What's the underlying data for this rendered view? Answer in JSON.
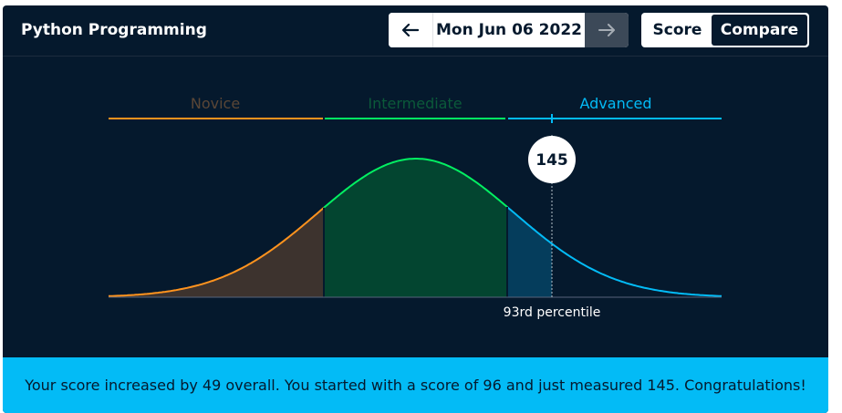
{
  "header": {
    "title": "Python Programming",
    "date": "Mon Jun 06 2022",
    "prev_icon": "arrow-left-icon",
    "next_icon": "arrow-right-icon",
    "toggle": {
      "score_label": "Score",
      "compare_label": "Compare",
      "selected": "Compare"
    }
  },
  "levels": [
    {
      "label": "Novice",
      "color": "#ff931e",
      "fill": "#3d332e",
      "label_color": "#5a4636"
    },
    {
      "label": "Intermediate",
      "color": "#03ef62",
      "fill": "#034530",
      "label_color": "#0b5a3a"
    },
    {
      "label": "Advanced",
      "color": "#03bbf6",
      "fill": "#053d5c",
      "label_color": "#03bbf6"
    }
  ],
  "score": {
    "value": "145",
    "percentile_label": "93rd percentile"
  },
  "banner": {
    "text": "Your score increased by 49 overall. You started with a score of 96 and just measured 145. Congratulations!"
  },
  "colors": {
    "background": "#05192d",
    "banner": "#03bbf6",
    "accent_green": "#03ef62",
    "accent_orange": "#ff931e",
    "accent_blue": "#03bbf6"
  }
}
